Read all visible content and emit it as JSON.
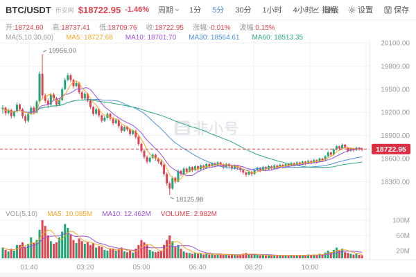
{
  "header": {
    "symbol": "BTC/USDT",
    "exchange": "币安网",
    "price": "$18722.95",
    "change": "-1.46%",
    "period_label": "周期",
    "periods": [
      "1分",
      "5分",
      "30分",
      "1小时",
      "4小时",
      "日线"
    ],
    "active_period": "5分",
    "tools": [
      "指标",
      "设置",
      "保存"
    ]
  },
  "ohlc": {
    "items": [
      {
        "label": "开:",
        "value": "18724.60"
      },
      {
        "label": "高:",
        "value": "18737.41"
      },
      {
        "label": "低:",
        "value": "18709.76"
      },
      {
        "label": "收:",
        "value": "18722.95"
      },
      {
        "label": "涨幅:",
        "value": "-0.01%"
      },
      {
        "label": "波幅:",
        "value": "0.15%"
      }
    ]
  },
  "ma_row": {
    "items": [
      "MA(5,10,30,60)",
      "MA5: 18727.68",
      "MA10: 18701.70",
      "MA30: 18564.61",
      "MA60: 18513.35"
    ]
  },
  "vol_row": {
    "items": [
      "VOL(5,10)",
      "MA5: 10.085M",
      "MA10: 12.462M",
      "VOLUME: 2.982M"
    ]
  },
  "watermark": "非小号",
  "colors": {
    "up": "#21a67a",
    "down": "#e2414e",
    "ma5": "#f5a623",
    "ma10": "#9b51e0",
    "ma30": "#4a90e2",
    "ma60": "#2aa880",
    "grid": "#f0f1f3",
    "axis_line": "#e2e4e8",
    "axis_text": "#999999",
    "badge": "#dd2f44",
    "annotation": "#777777"
  },
  "chart_data": {
    "type": "candlestick+volume",
    "interval": "5min",
    "price_axis": [
      20100.0,
      19800.0,
      19500.0,
      19200.0,
      18900.0,
      18600.0,
      18300.0
    ],
    "volume_axis": [
      {
        "label": "100M",
        "value": 100
      },
      {
        "label": "60M",
        "value": 60
      },
      {
        "label": "20M",
        "value": 20
      }
    ],
    "time_labels": [
      "01:40",
      "03:20",
      "05:00",
      "06:40",
      "08:20",
      "10:00"
    ],
    "current_price": 18722.95,
    "annotations": [
      {
        "type": "high",
        "text": "19956.00",
        "index": 14,
        "price": 19956.0
      },
      {
        "type": "low",
        "text": "18125.98",
        "index": 59,
        "price": 18125.98
      }
    ],
    "candles_format": [
      "open",
      "high",
      "low",
      "close",
      "volume_M"
    ],
    "candles": [
      [
        19240,
        19290,
        19180,
        19260,
        28
      ],
      [
        19260,
        19275,
        19160,
        19190,
        22
      ],
      [
        19190,
        19250,
        19170,
        19230,
        18
      ],
      [
        19230,
        19245,
        19120,
        19150,
        25
      ],
      [
        19150,
        19225,
        19130,
        19210,
        20
      ],
      [
        19210,
        19330,
        19195,
        19300,
        35
      ],
      [
        19300,
        19315,
        19215,
        19240,
        35
      ],
      [
        19240,
        19255,
        19120,
        19150,
        42
      ],
      [
        19150,
        19175,
        19060,
        19090,
        30
      ],
      [
        19090,
        19200,
        19070,
        19180,
        38
      ],
      [
        19180,
        19285,
        19165,
        19260,
        55
      ],
      [
        19260,
        19280,
        19175,
        19200,
        40
      ],
      [
        19200,
        19360,
        19185,
        19340,
        48
      ],
      [
        19340,
        19730,
        19320,
        19700,
        75
      ],
      [
        19700,
        19956,
        19370,
        19420,
        100
      ],
      [
        19420,
        19445,
        19320,
        19350,
        85
      ],
      [
        19350,
        19380,
        19255,
        19300,
        60
      ],
      [
        19300,
        19450,
        19285,
        19430,
        45
      ],
      [
        19430,
        19455,
        19350,
        19380,
        38
      ],
      [
        19380,
        19400,
        19270,
        19300,
        42
      ],
      [
        19300,
        19380,
        19285,
        19360,
        55
      ],
      [
        19360,
        19520,
        19345,
        19500,
        70
      ],
      [
        19500,
        19645,
        19490,
        19620,
        90
      ],
      [
        19620,
        19710,
        19600,
        19680,
        80
      ],
      [
        19680,
        19700,
        19590,
        19620,
        62
      ],
      [
        19620,
        19635,
        19510,
        19540,
        48
      ],
      [
        19540,
        19600,
        19525,
        19580,
        40
      ],
      [
        19580,
        19595,
        19435,
        19460,
        52
      ],
      [
        19460,
        19480,
        19350,
        19380,
        45
      ],
      [
        19380,
        19460,
        19365,
        19440,
        38
      ],
      [
        19440,
        19455,
        19330,
        19350,
        42
      ],
      [
        19350,
        19370,
        19245,
        19270,
        35
      ],
      [
        19270,
        19285,
        19155,
        19180,
        40
      ],
      [
        19180,
        19260,
        19165,
        19240,
        28
      ],
      [
        19240,
        19255,
        19135,
        19160,
        32
      ],
      [
        19160,
        19175,
        19065,
        19090,
        30
      ],
      [
        19090,
        19150,
        19075,
        19130,
        22
      ],
      [
        19130,
        19200,
        19115,
        19180,
        20
      ],
      [
        19180,
        19195,
        19095,
        19120,
        24
      ],
      [
        19120,
        19140,
        19035,
        19060,
        26
      ],
      [
        19060,
        19120,
        19045,
        19100,
        20
      ],
      [
        19100,
        19115,
        18995,
        19020,
        24
      ],
      [
        19020,
        19040,
        18935,
        18960,
        28
      ],
      [
        18960,
        19030,
        18945,
        19010,
        18
      ],
      [
        19010,
        19025,
        18955,
        18980,
        16
      ],
      [
        18980,
        18995,
        18895,
        18920,
        20
      ],
      [
        18920,
        18980,
        18905,
        18960,
        15
      ],
      [
        18960,
        18975,
        18855,
        18880,
        25
      ],
      [
        18880,
        18900,
        18765,
        18790,
        35
      ],
      [
        18790,
        18810,
        18675,
        18700,
        48
      ],
      [
        18700,
        18720,
        18595,
        18620,
        42
      ],
      [
        18620,
        18640,
        18535,
        18560,
        35
      ],
      [
        18560,
        18630,
        18545,
        18610,
        22
      ],
      [
        18610,
        18670,
        18595,
        18650,
        18
      ],
      [
        18650,
        18665,
        18575,
        18600,
        16
      ],
      [
        18600,
        18615,
        18535,
        18560,
        18
      ],
      [
        18560,
        18580,
        18495,
        18520,
        20
      ],
      [
        18520,
        18535,
        18375,
        18400,
        35
      ],
      [
        18400,
        18420,
        18250,
        18280,
        48
      ],
      [
        18280,
        18300,
        18126,
        18210,
        60
      ],
      [
        18210,
        18370,
        18195,
        18350,
        45
      ],
      [
        18350,
        18365,
        18275,
        18300,
        30
      ],
      [
        18300,
        18460,
        18290,
        18440,
        35
      ],
      [
        18440,
        18455,
        18375,
        18400,
        25
      ],
      [
        18400,
        18490,
        18390,
        18470,
        18
      ],
      [
        18470,
        18485,
        18405,
        18430,
        15
      ],
      [
        18430,
        18505,
        18420,
        18490,
        14
      ],
      [
        18490,
        18500,
        18425,
        18450,
        12
      ],
      [
        18450,
        18515,
        18440,
        18500,
        14
      ],
      [
        18500,
        18510,
        18435,
        18460,
        12
      ],
      [
        18460,
        18525,
        18450,
        18510,
        13
      ],
      [
        18510,
        18520,
        18455,
        18480,
        10
      ],
      [
        18480,
        18545,
        18470,
        18530,
        12
      ],
      [
        18530,
        18540,
        18475,
        18500,
        10
      ],
      [
        18500,
        18555,
        18490,
        18540,
        11
      ],
      [
        18540,
        18550,
        18485,
        18510,
        9
      ],
      [
        18510,
        18565,
        18500,
        18550,
        12
      ],
      [
        18550,
        18560,
        18495,
        18520,
        10
      ],
      [
        18520,
        18535,
        18465,
        18490,
        9
      ],
      [
        18490,
        18545,
        18480,
        18530,
        10
      ],
      [
        18530,
        18540,
        18475,
        18500,
        8
      ],
      [
        18500,
        18515,
        18445,
        18470,
        9
      ],
      [
        18470,
        18525,
        18460,
        18510,
        10
      ],
      [
        18510,
        18520,
        18455,
        18480,
        8
      ],
      [
        18480,
        18495,
        18425,
        18450,
        10
      ],
      [
        18450,
        18465,
        18395,
        18420,
        12
      ],
      [
        18420,
        18435,
        18365,
        18390,
        14
      ],
      [
        18390,
        18445,
        18380,
        18430,
        10
      ],
      [
        18430,
        18440,
        18375,
        18400,
        9
      ],
      [
        18400,
        18465,
        18390,
        18450,
        10
      ],
      [
        18450,
        18495,
        18440,
        18480,
        9
      ],
      [
        18480,
        18490,
        18425,
        18450,
        8
      ],
      [
        18450,
        18505,
        18440,
        18490,
        9
      ],
      [
        18490,
        18500,
        18435,
        18460,
        7
      ],
      [
        18460,
        18515,
        18450,
        18500,
        8
      ],
      [
        18500,
        18510,
        18445,
        18470,
        7
      ],
      [
        18470,
        18525,
        18460,
        18510,
        9
      ],
      [
        18510,
        18520,
        18465,
        18490,
        7
      ],
      [
        18490,
        18535,
        18480,
        18520,
        8
      ],
      [
        18520,
        18530,
        18475,
        18500,
        7
      ],
      [
        18500,
        18545,
        18490,
        18530,
        8
      ],
      [
        18530,
        18540,
        18485,
        18510,
        7
      ],
      [
        18510,
        18555,
        18500,
        18540,
        9
      ],
      [
        18540,
        18550,
        18495,
        18520,
        7
      ],
      [
        18520,
        18565,
        18510,
        18550,
        8
      ],
      [
        18550,
        18560,
        18505,
        18530,
        7
      ],
      [
        18530,
        18575,
        18520,
        18560,
        9
      ],
      [
        18560,
        18570,
        18515,
        18540,
        8
      ],
      [
        18540,
        18585,
        18530,
        18570,
        10
      ],
      [
        18570,
        18580,
        18525,
        18550,
        8
      ],
      [
        18550,
        18595,
        18540,
        18580,
        10
      ],
      [
        18580,
        18590,
        18535,
        18560,
        9
      ],
      [
        18560,
        18615,
        18550,
        18600,
        12
      ],
      [
        18600,
        18610,
        18555,
        18580,
        10
      ],
      [
        18580,
        18645,
        18570,
        18630,
        15
      ],
      [
        18630,
        18695,
        18620,
        18680,
        20
      ],
      [
        18680,
        18690,
        18625,
        18650,
        16
      ],
      [
        18650,
        18735,
        18640,
        18720,
        22
      ],
      [
        18720,
        18775,
        18710,
        18760,
        28
      ],
      [
        18760,
        18770,
        18705,
        18730,
        20
      ],
      [
        18730,
        18795,
        18720,
        18780,
        25
      ],
      [
        18780,
        18790,
        18725,
        18740,
        16
      ],
      [
        18740,
        18750,
        18680,
        18700,
        14
      ],
      [
        18700,
        18745,
        18690,
        18730,
        12
      ],
      [
        18730,
        18740,
        18685,
        18710,
        10
      ],
      [
        18710,
        18755,
        18700,
        18740,
        12
      ],
      [
        18740,
        18750,
        18700,
        18725,
        9
      ],
      [
        18725,
        18745,
        18695,
        18723,
        8
      ]
    ],
    "overlays": [
      "MA5",
      "MA10",
      "MA30",
      "MA60"
    ],
    "volume_overlays": [
      "VOL-MA5",
      "VOL-MA10"
    ]
  }
}
